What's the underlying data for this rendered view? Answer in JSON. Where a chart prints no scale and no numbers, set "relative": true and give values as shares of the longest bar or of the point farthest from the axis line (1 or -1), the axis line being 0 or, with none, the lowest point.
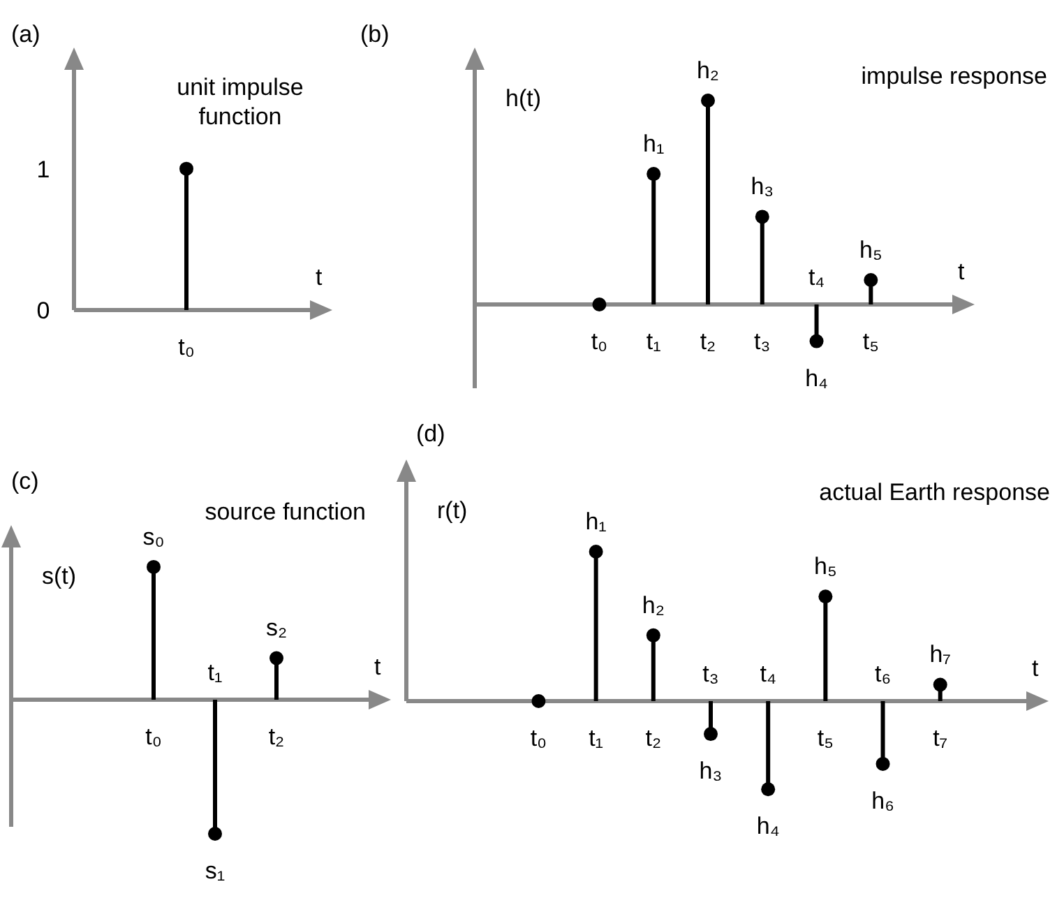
{
  "chart_data": [
    {
      "type": "lollipop",
      "title": "unit impulse function",
      "xlabel": "t",
      "categories": [
        null,
        "t₀",
        null
      ],
      "values": [
        null,
        1,
        null
      ],
      "color": "#000000",
      "ylim": [
        0,
        1.7
      ],
      "yticks": [
        0,
        1
      ],
      "annotations": [
        "(a)"
      ]
    },
    {
      "type": "lollipop",
      "title": "impulse response",
      "xlabel": "t",
      "ylabel": "h(t)",
      "categories": [
        null,
        null,
        "t₀",
        "t₁",
        "t₂",
        "t₃",
        "t₄",
        "t₅",
        null
      ],
      "values": [
        null,
        null,
        0,
        0.64,
        1,
        0.43,
        -0.18,
        0.12,
        null
      ],
      "color": "#000000",
      "relative": true,
      "annotations": [
        "(b)",
        {
          "text": "h₁",
          "x": "t₁",
          "y": 0.64
        },
        {
          "text": "h₂",
          "x": "t₂",
          "y": 1
        },
        {
          "text": "h₃",
          "x": "t₃",
          "y": 0.43
        },
        {
          "text": "h₄",
          "x": "t₄",
          "y": -0.18
        },
        {
          "text": "h₅",
          "x": "t₅",
          "y": 0.12
        }
      ]
    },
    {
      "type": "lollipop",
      "title": "source function",
      "xlabel": "t",
      "ylabel": "s(t)",
      "categories": [
        null,
        null,
        "t₀",
        "t₁",
        "t₂",
        null
      ],
      "values": [
        null,
        null,
        0.99,
        -1,
        0.31,
        null
      ],
      "color": "#000000",
      "relative": true,
      "annotations": [
        "(c)",
        {
          "text": "s₀",
          "x": "t₀",
          "y": 0.99
        },
        {
          "text": "s₁",
          "x": "t₁",
          "y": -1
        },
        {
          "text": "s₂",
          "x": "t₂",
          "y": 0.31
        }
      ]
    },
    {
      "type": "lollipop",
      "title": "actual Earth response",
      "xlabel": "t",
      "ylabel": "r(t)",
      "categories": [
        null,
        null,
        "t₀",
        "t₁",
        "t₂",
        "t₃",
        "t₄",
        "t₅",
        "t₆",
        "t₇",
        null
      ],
      "values": [
        null,
        null,
        0,
        1,
        0.44,
        -0.22,
        -0.59,
        0.7,
        -0.42,
        0.11,
        null
      ],
      "color": "#000000",
      "relative": true,
      "annotations": [
        "(d)",
        {
          "text": "h₁",
          "x": "t₁",
          "y": 1
        },
        {
          "text": "h₂",
          "x": "t₂",
          "y": 0.44
        },
        {
          "text": "h₃",
          "x": "t₃",
          "y": -0.22
        },
        {
          "text": "h₄",
          "x": "t₄",
          "y": -0.59
        },
        {
          "text": "h₅",
          "x": "t₅",
          "y": 0.7
        },
        {
          "text": "h₆",
          "x": "t₆",
          "y": -0.42
        },
        {
          "text": "h₇",
          "x": "t₇",
          "y": 0.11
        }
      ]
    }
  ]
}
